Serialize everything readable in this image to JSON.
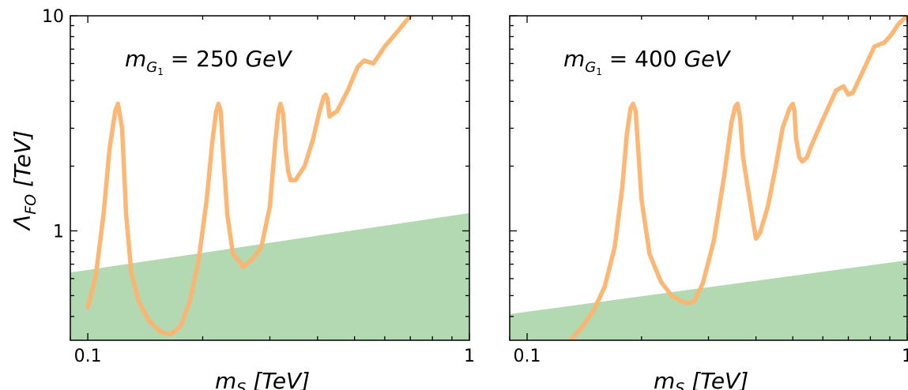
{
  "colors": {
    "curve": "#fdb36e",
    "band": "#b2d9b2",
    "axis": "#000000"
  },
  "chart_data": [
    {
      "type": "line",
      "panel": "left",
      "annotation": {
        "m": "m",
        "sub": "G",
        "subsub": "1",
        "eq": " = 250 ",
        "unit": "GeV"
      },
      "xlabel": {
        "m": "m",
        "sub": "S",
        "rest": " [TeV]"
      },
      "ylabel": {
        "lam": "Λ",
        "sub": "FO",
        "rest": " [TeV]"
      },
      "xscale": "log",
      "yscale": "log",
      "xlim": [
        0.09,
        1.0
      ],
      "ylim": [
        0.31,
        10.0
      ],
      "xticks": [
        {
          "value": 0.1,
          "label": "0.1"
        },
        {
          "value": 1,
          "label": "1"
        }
      ],
      "yticks": [
        {
          "value": 1,
          "label": "1"
        },
        {
          "value": 10,
          "label": "10"
        }
      ],
      "band": {
        "x": [
          0.09,
          1.0
        ],
        "lower": 0.31,
        "upper": [
          0.64,
          1.21
        ]
      },
      "series": [
        {
          "x": [
            0.1,
            0.105,
            0.11,
            0.114,
            0.118,
            0.12,
            0.123,
            0.126,
            0.13,
            0.136,
            0.145,
            0.155,
            0.165,
            0.175,
            0.185,
            0.195,
            0.205,
            0.212,
            0.217,
            0.22,
            0.223,
            0.226,
            0.232,
            0.24,
            0.25,
            0.255,
            0.26,
            0.27,
            0.285,
            0.3,
            0.31,
            0.316,
            0.32,
            0.325,
            0.33,
            0.335,
            0.34,
            0.35,
            0.37,
            0.39,
            0.405,
            0.415,
            0.42,
            0.425,
            0.43,
            0.45,
            0.48,
            0.51,
            0.53,
            0.56,
            0.6,
            0.65,
            0.7
          ],
          "y": [
            0.44,
            0.62,
            1.2,
            2.4,
            3.6,
            3.9,
            3.0,
            1.2,
            0.64,
            0.47,
            0.38,
            0.34,
            0.33,
            0.36,
            0.47,
            0.72,
            1.4,
            2.6,
            3.6,
            3.9,
            3.6,
            2.4,
            1.2,
            0.78,
            0.72,
            0.68,
            0.7,
            0.74,
            0.84,
            1.3,
            2.6,
            3.6,
            3.9,
            3.5,
            2.4,
            1.9,
            1.72,
            1.72,
            2.0,
            2.7,
            3.6,
            4.2,
            4.3,
            4.1,
            3.4,
            3.6,
            4.5,
            5.8,
            6.2,
            6.0,
            7.2,
            8.5,
            10.0
          ]
        }
      ]
    },
    {
      "type": "line",
      "panel": "right",
      "annotation": {
        "m": "m",
        "sub": "G",
        "subsub": "1",
        "eq": " = 400 ",
        "unit": "GeV"
      },
      "xlabel": {
        "m": "m",
        "sub": "S",
        "rest": " [TeV]"
      },
      "xscale": "log",
      "yscale": "log",
      "xlim": [
        0.09,
        1.0
      ],
      "ylim": [
        0.31,
        10.0
      ],
      "xticks": [
        {
          "value": 0.1,
          "label": "0.1"
        },
        {
          "value": 1,
          "label": "1"
        }
      ],
      "yticks": [
        {
          "value": 1,
          "label": ""
        },
        {
          "value": 10,
          "label": ""
        }
      ],
      "band": {
        "x": [
          0.09,
          1.0
        ],
        "lower": 0.31,
        "upper": [
          0.41,
          0.73
        ]
      },
      "series": [
        {
          "x": [
            0.13,
            0.14,
            0.15,
            0.16,
            0.17,
            0.178,
            0.183,
            0.187,
            0.19,
            0.193,
            0.196,
            0.2,
            0.21,
            0.225,
            0.24,
            0.255,
            0.265,
            0.275,
            0.29,
            0.31,
            0.33,
            0.345,
            0.353,
            0.358,
            0.363,
            0.37,
            0.385,
            0.395,
            0.4,
            0.41,
            0.43,
            0.45,
            0.47,
            0.49,
            0.5,
            0.505,
            0.51,
            0.52,
            0.53,
            0.545,
            0.56,
            0.6,
            0.65,
            0.68,
            0.7,
            0.72,
            0.76,
            0.82,
            0.87,
            0.91,
            0.95,
            1.0
          ],
          "y": [
            0.31,
            0.36,
            0.43,
            0.55,
            0.84,
            1.6,
            2.8,
            3.7,
            3.9,
            3.6,
            2.4,
            1.4,
            0.78,
            0.58,
            0.5,
            0.47,
            0.46,
            0.47,
            0.57,
            0.9,
            1.8,
            3.2,
            3.8,
            3.9,
            3.4,
            2.2,
            1.4,
            1.05,
            0.92,
            0.98,
            1.3,
            1.95,
            3.0,
            3.7,
            3.9,
            3.6,
            2.7,
            2.2,
            2.1,
            2.2,
            2.5,
            3.3,
            4.5,
            4.7,
            4.3,
            4.4,
            5.4,
            7.2,
            7.5,
            8.2,
            9.2,
            10.0
          ]
        }
      ]
    }
  ]
}
